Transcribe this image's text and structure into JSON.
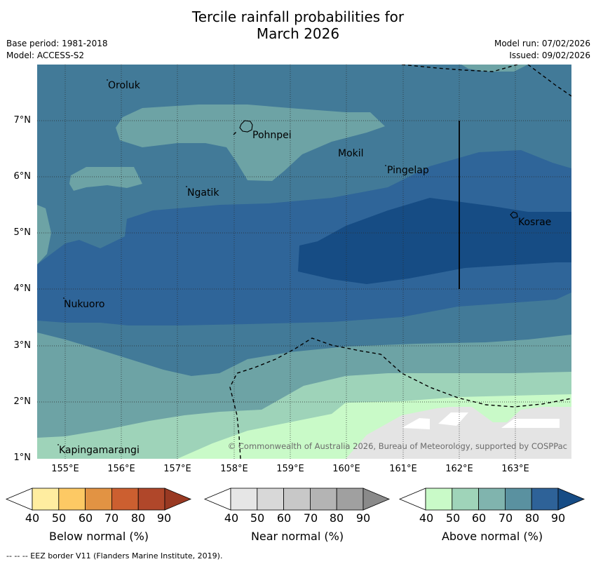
{
  "title_line1": "Tercile rainfall probabilities for",
  "title_line2": "March 2026",
  "meta": {
    "base_period": "Base period: 1981-2018",
    "model": "Model: ACCESS-S2",
    "model_run": "Model run: 07/02/2026",
    "issued": "Issued: 09/02/2026"
  },
  "axes": {
    "x_ticks": [
      "155°E",
      "156°E",
      "157°E",
      "158°E",
      "159°E",
      "160°E",
      "161°E",
      "162°E",
      "163°E"
    ],
    "y_ticks": [
      "7°N",
      "6°N",
      "5°N",
      "4°N",
      "3°N",
      "2°N",
      "1°N"
    ]
  },
  "places": [
    "Oroluk",
    "Pohnpei",
    "Mokil",
    "Pingelap",
    "Ngatik",
    "Kosrae",
    "Nukuoro",
    "Kapingamarangi"
  ],
  "copyright": "© Commonwealth of Australia 2026, Bureau of Meteorology, supported by COSPPac",
  "colorbars": [
    {
      "label": "Below normal (%)",
      "ticks": [
        "40",
        "50",
        "60",
        "70",
        "80",
        "90"
      ],
      "colors": [
        "#ffffff",
        "#ffeda0",
        "#fdc964",
        "#e29343",
        "#cc5f30",
        "#b0472a",
        "#993922"
      ]
    },
    {
      "label": "Near normal (%)",
      "ticks": [
        "40",
        "50",
        "60",
        "70",
        "80",
        "90"
      ],
      "colors": [
        "#ffffff",
        "#e6e6e6",
        "#d8d8d8",
        "#c8c8c8",
        "#b4b4b4",
        "#a0a0a0",
        "#8a8a8a"
      ]
    },
    {
      "label": "Above normal (%)",
      "ticks": [
        "40",
        "50",
        "60",
        "70",
        "80",
        "90"
      ],
      "colors": [
        "#ffffff",
        "#c9fac8",
        "#9fd4b9",
        "#80b4ae",
        "#5a91a0",
        "#2e6298",
        "#164c85"
      ]
    }
  ],
  "footnote": "--  --  -- EEZ border V11 (Flanders Marine Institute, 2019)."
}
